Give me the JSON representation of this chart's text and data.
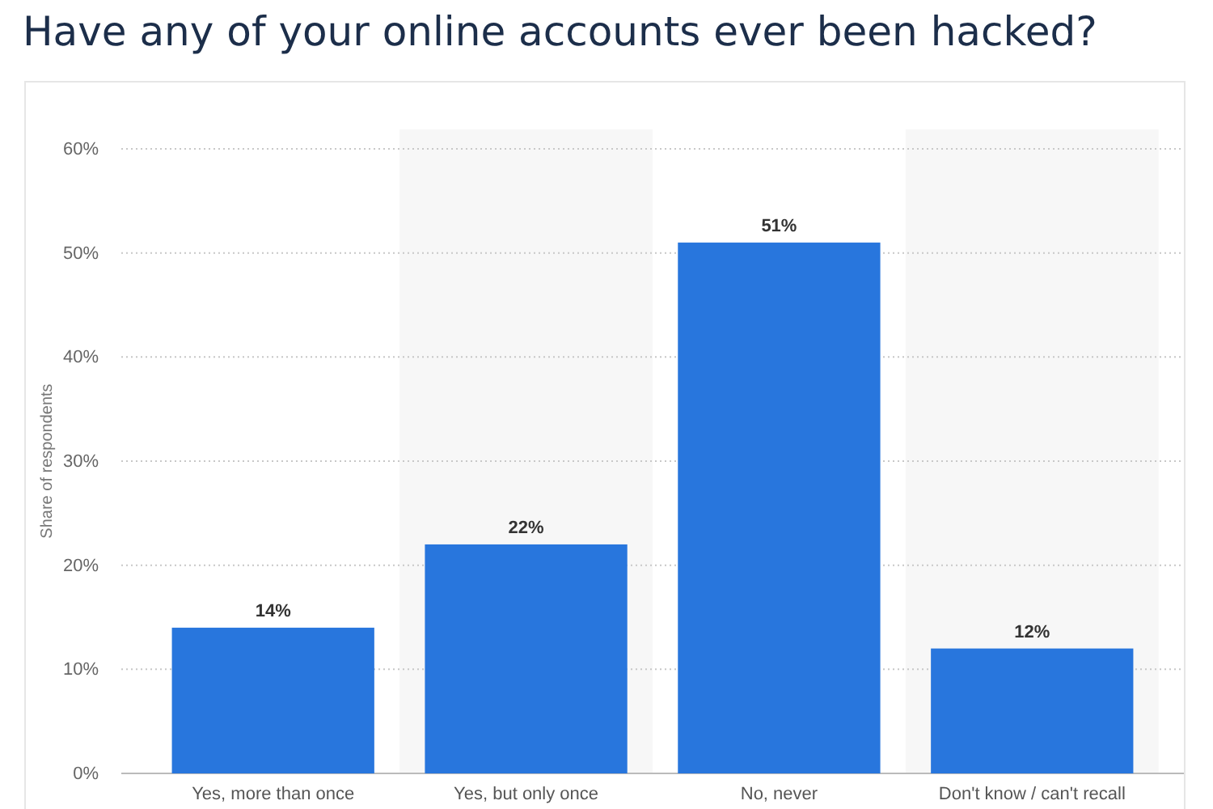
{
  "chart_data": {
    "type": "bar",
    "title": "Have any of your online accounts ever been hacked?",
    "ylabel": "Share of respondents",
    "categories": [
      "Yes, more than once",
      "Yes, but only once",
      "No, never",
      "Don't know / can't recall"
    ],
    "values": [
      14,
      22,
      51,
      12
    ],
    "color": "#2876dd",
    "value_labels": [
      "14%",
      "22%",
      "51%",
      "12%"
    ],
    "ylim": [
      0,
      60
    ],
    "yticks": [
      {
        "value": 0,
        "label": "0%"
      },
      {
        "value": 10,
        "label": "10%"
      },
      {
        "value": 20,
        "label": "20%"
      },
      {
        "value": 30,
        "label": "30%"
      },
      {
        "value": 40,
        "label": "40%"
      },
      {
        "value": 50,
        "label": "50%"
      },
      {
        "value": 60,
        "label": "60%"
      }
    ],
    "grid": "y"
  }
}
